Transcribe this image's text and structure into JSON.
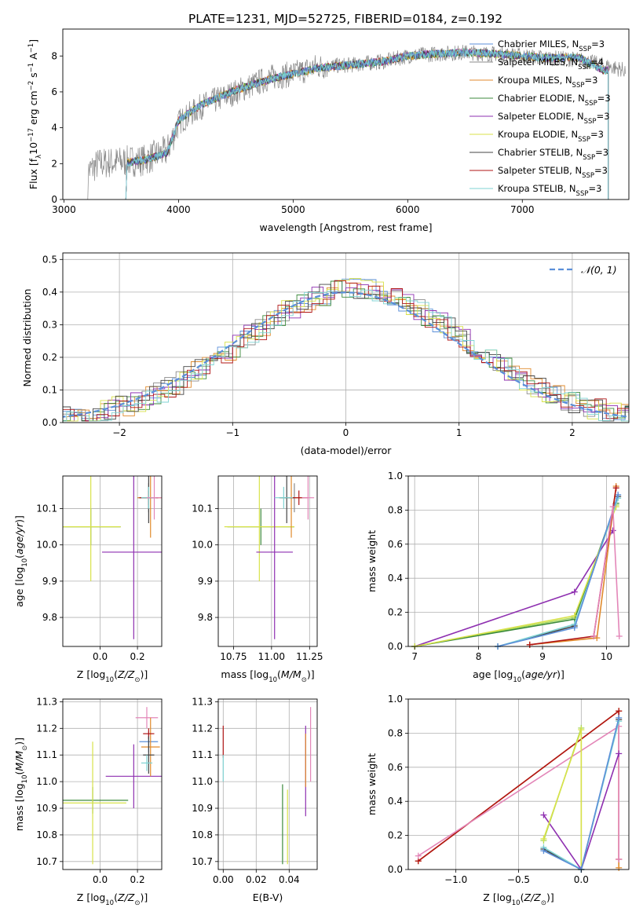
{
  "figure_title": "PLATE=1231, MJD=52725, FIBERID=0184, z=0.192",
  "colors": {
    "chabrier_miles": "#5b8fd9",
    "salpeter_miles": "#8b8b8b",
    "kroupa_miles": "#e08a2c",
    "chabrier_elodie": "#3c8a3c",
    "salpeter_elodie": "#8e2fb0",
    "kroupa_elodie": "#d8e24a",
    "chabrier_stelib": "#444444",
    "salpeter_stelib": "#b01515",
    "kroupa_stelib": "#7fd3d3",
    "gray": "#8a8a8a",
    "pink": "#e386b8",
    "lime": "#a8d85a",
    "normal": "#5b8fd9"
  },
  "chart_data": [
    {
      "id": "spectrum",
      "type": "line",
      "xlabel": "wavelength [Angstrom, rest frame]",
      "ylabel": "Flux [fλ10⁻¹⁷ erg cm⁻² s⁻¹ A⁻¹]",
      "xlim": [
        2990,
        7930
      ],
      "ylim": [
        0,
        9.5
      ],
      "xticks": [
        "3000",
        "4000",
        "5000",
        "6000",
        "7000"
      ],
      "yticks": [
        "0",
        "2",
        "4",
        "6",
        "8"
      ],
      "legend": [
        "Chabrier MILES, N_SSP=3",
        "Salpeter MILES, N_SSP=4",
        "Kroupa MILES, N_SSP=3",
        "Chabrier ELODIE, N_SSP=3",
        "Salpeter ELODIE, N_SSP=3",
        "Kroupa ELODIE, N_SSP=3",
        "Chabrier STELIB, N_SSP=3",
        "Salpeter STELIB, N_SSP=3",
        "Kroupa STELIB, N_SSP=3"
      ],
      "legend_placement": "top-right",
      "data_x": [
        3200,
        3300,
        3500,
        3700,
        3900,
        4000,
        4200,
        4500,
        4800,
        5000,
        5200,
        5500,
        5800,
        6000,
        6200,
        6500,
        6800,
        7000,
        7200,
        7500,
        7700,
        7900
      ],
      "data_y": [
        1.5,
        2.0,
        2.1,
        2.2,
        2.7,
        4.3,
        5.2,
        6.0,
        6.8,
        7.0,
        7.4,
        7.5,
        7.7,
        8.0,
        8.1,
        8.2,
        8.1,
        8.0,
        7.9,
        7.8,
        7.5,
        7.2
      ],
      "model_x": [
        3500,
        3700,
        3900,
        4000,
        4200,
        4500,
        4800,
        5000,
        5200,
        5500,
        5800,
        6000,
        6200,
        6500,
        6800,
        7000,
        7200,
        7500,
        7700
      ],
      "model_y": [
        2.0,
        2.2,
        2.6,
        4.4,
        5.3,
        6.1,
        6.7,
        7.0,
        7.3,
        7.5,
        7.7,
        8.0,
        8.1,
        8.2,
        8.1,
        8.0,
        7.9,
        7.9,
        7.2
      ]
    },
    {
      "id": "residuals",
      "type": "histogram",
      "xlabel": "(data-model)/error",
      "ylabel": "Normed distribution",
      "xlim": [
        -2.5,
        2.5
      ],
      "ylim": [
        0,
        0.52
      ],
      "xticks": [
        "−2",
        "−1",
        "0",
        "1",
        "2"
      ],
      "yticks": [
        "0.0",
        "0.1",
        "0.2",
        "0.3",
        "0.4",
        "0.5"
      ],
      "legend": [
        "𝒩(0, 1)"
      ],
      "legend_placement": "top-right",
      "bin_width": 0.1,
      "bin_start": -2.5
    },
    {
      "id": "age_vs_Z",
      "type": "errorbar",
      "xlabel": "Z [log₁₀(Z/Z⊙)]",
      "ylabel": "age  [log₁₀(age/yr)]",
      "xlim": [
        -0.2,
        0.33
      ],
      "ylim": [
        9.72,
        10.19
      ],
      "xticks": [
        "0.0",
        "0.2"
      ],
      "yticks": [
        "9.8",
        "9.9",
        "10.0",
        "10.1"
      ],
      "points": [
        {
          "c": "chabrier_elodie",
          "x": -0.05,
          "y": 10.05,
          "xe": 0.16,
          "ye": 0.05
        },
        {
          "c": "kroupa_elodie",
          "x": -0.05,
          "y": 10.05,
          "xe": 0.16,
          "ye": 0.15
        },
        {
          "c": "salpeter_elodie",
          "x": 0.18,
          "y": 9.98,
          "xe": 0.17,
          "ye": 0.24
        },
        {
          "c": "salpeter_miles",
          "x": 0.26,
          "y": 10.13,
          "xe": 0.06,
          "ye": 0.04
        },
        {
          "c": "kroupa_miles",
          "x": 0.27,
          "y": 10.13,
          "xe": 0.07,
          "ye": 0.11
        },
        {
          "c": "chabrier_stelib",
          "x": 0.26,
          "y": 10.13,
          "xe": 0.05,
          "ye": 0.07
        },
        {
          "c": "salpeter_stelib",
          "x": 0.26,
          "y": 10.13,
          "xe": 0.05,
          "ye": 0.02
        },
        {
          "c": "kroupa_stelib",
          "x": 0.26,
          "y": 10.13,
          "xe": 0.04,
          "ye": 0.03
        },
        {
          "c": "pink",
          "x": 0.29,
          "y": 10.13,
          "xe": 0.04,
          "ye": 0.06
        }
      ]
    },
    {
      "id": "age_vs_mass",
      "type": "errorbar",
      "xlabel": "mass [log₁₀(M/M⊙)]",
      "xlim": [
        10.65,
        11.3
      ],
      "ylim": [
        9.72,
        10.19
      ],
      "xticks": [
        "10.75",
        "11.00",
        "11.25"
      ],
      "yticks": [
        "9.8",
        "9.9",
        "10.0",
        "10.1"
      ],
      "points": [
        {
          "c": "chabrier_elodie",
          "x": 10.93,
          "y": 10.05,
          "xe": 0.22,
          "ye": 0.05
        },
        {
          "c": "kroupa_elodie",
          "x": 10.92,
          "y": 10.05,
          "xe": 0.23,
          "ye": 0.15
        },
        {
          "c": "salpeter_elodie",
          "x": 11.02,
          "y": 9.98,
          "xe": 0.12,
          "ye": 0.24
        },
        {
          "c": "salpeter_miles",
          "x": 11.15,
          "y": 10.13,
          "xe": 0.06,
          "ye": 0.04
        },
        {
          "c": "kroupa_miles",
          "x": 11.13,
          "y": 10.13,
          "xe": 0.07,
          "ye": 0.11
        },
        {
          "c": "chabrier_stelib",
          "x": 11.1,
          "y": 10.13,
          "xe": 0.05,
          "ye": 0.07
        },
        {
          "c": "salpeter_stelib",
          "x": 11.18,
          "y": 10.13,
          "xe": 0.06,
          "ye": 0.02
        },
        {
          "c": "kroupa_stelib",
          "x": 11.08,
          "y": 10.13,
          "xe": 0.06,
          "ye": 0.03
        },
        {
          "c": "pink",
          "x": 11.24,
          "y": 10.13,
          "xe": 0.04,
          "ye": 0.06
        }
      ]
    },
    {
      "id": "weight_vs_age",
      "type": "line",
      "xlabel": "age  [log₁₀(age/yr)]",
      "ylabel": "mass weight",
      "xlim": [
        6.9,
        10.35
      ],
      "ylim": [
        0,
        1.0
      ],
      "xticks": [
        "7",
        "8",
        "9",
        "10"
      ],
      "yticks": [
        "0.0",
        "0.2",
        "0.4",
        "0.6",
        "0.8",
        "1.0"
      ],
      "series": [
        {
          "c": "salpeter_elodie",
          "x": [
            7.0,
            9.5,
            10.1
          ],
          "y": [
            0.0,
            0.32,
            0.68
          ]
        },
        {
          "c": "lime",
          "x": [
            7.0,
            9.5,
            10.15
          ],
          "y": [
            0.0,
            0.17,
            0.83
          ]
        },
        {
          "c": "chabrier_elodie",
          "x": [
            7.0,
            9.5,
            10.15
          ],
          "y": [
            0.0,
            0.16,
            0.84
          ]
        },
        {
          "c": "kroupa_elodie",
          "x": [
            7.0,
            9.5,
            10.15
          ],
          "y": [
            0.0,
            0.18,
            0.82
          ]
        },
        {
          "c": "chabrier_stelib",
          "x": [
            8.3,
            9.5,
            10.18
          ],
          "y": [
            0.0,
            0.12,
            0.88
          ]
        },
        {
          "c": "kroupa_stelib",
          "x": [
            8.3,
            9.5,
            10.18
          ],
          "y": [
            0.0,
            0.13,
            0.87
          ]
        },
        {
          "c": "chabrier_miles",
          "x": [
            8.3,
            9.5,
            10.18
          ],
          "y": [
            0.0,
            0.11,
            0.89
          ]
        },
        {
          "c": "kroupa_miles",
          "x": [
            8.8,
            9.85,
            10.15
          ],
          "y": [
            0.01,
            0.05,
            0.94
          ]
        },
        {
          "c": "salpeter_stelib",
          "x": [
            8.8,
            9.8,
            10.15
          ],
          "y": [
            0.01,
            0.06,
            0.93
          ]
        },
        {
          "c": "pink",
          "x": [
            9.8,
            10.1,
            10.2
          ],
          "y": [
            0.06,
            0.82,
            0.06
          ]
        }
      ]
    },
    {
      "id": "mass_vs_Z",
      "type": "errorbar",
      "xlabel": "Z [log₁₀(Z/Z⊙)]",
      "ylabel": "mass [log₁₀(M/M⊙)]",
      "xlim": [
        -0.2,
        0.33
      ],
      "ylim": [
        10.67,
        11.31
      ],
      "xticks": [
        "0.0",
        "0.2"
      ],
      "yticks": [
        "10.7",
        "10.8",
        "10.9",
        "11.0",
        "11.1",
        "11.2",
        "11.3"
      ],
      "points": [
        {
          "c": "chabrier_elodie",
          "x": -0.04,
          "y": 10.93,
          "xe": 0.19,
          "ye": 0.05
        },
        {
          "c": "kroupa_elodie",
          "x": -0.04,
          "y": 10.92,
          "xe": 0.18,
          "ye": 0.23
        },
        {
          "c": "salpeter_elodie",
          "x": 0.18,
          "y": 11.02,
          "xe": 0.15,
          "ye": 0.12
        },
        {
          "c": "pink",
          "x": 0.25,
          "y": 11.24,
          "xe": 0.06,
          "ye": 0.04
        },
        {
          "c": "chabrier_miles",
          "x": 0.26,
          "y": 11.15,
          "xe": 0.05,
          "ye": 0.04
        },
        {
          "c": "kroupa_miles",
          "x": 0.27,
          "y": 11.13,
          "xe": 0.05,
          "ye": 0.11
        },
        {
          "c": "salpeter_stelib",
          "x": 0.26,
          "y": 11.18,
          "xe": 0.03,
          "ye": 0.02
        },
        {
          "c": "chabrier_stelib",
          "x": 0.26,
          "y": 11.1,
          "xe": 0.03,
          "ye": 0.07
        },
        {
          "c": "kroupa_stelib",
          "x": 0.25,
          "y": 11.07,
          "xe": 0.03,
          "ye": 0.03
        }
      ]
    },
    {
      "id": "mass_vs_ebv",
      "type": "errorbar",
      "xlabel": "E(B-V)",
      "xlim": [
        -0.003,
        0.057
      ],
      "ylim": [
        10.67,
        11.31
      ],
      "xticks": [
        "0.00",
        "0.02",
        "0.04"
      ],
      "yticks": [
        "10.7",
        "10.8",
        "10.9",
        "11.0",
        "11.1",
        "11.2",
        "11.3"
      ],
      "points": [
        {
          "c": "salpeter_stelib",
          "x": 0.0,
          "y": 11.15,
          "xe": 0.0,
          "ye": 0.06
        },
        {
          "c": "kroupa_stelib",
          "x": 0.0,
          "y": 11.05,
          "xe": 0.0,
          "ye": 0.05
        },
        {
          "c": "chabrier_elodie",
          "x": 0.036,
          "y": 10.84,
          "xe": 0.0,
          "ye": 0.15
        },
        {
          "c": "kroupa_elodie",
          "x": 0.039,
          "y": 10.83,
          "xe": 0.0,
          "ye": 0.14
        },
        {
          "c": "salpeter_elodie",
          "x": 0.05,
          "y": 11.04,
          "xe": 0.0,
          "ye": 0.17
        },
        {
          "c": "kroupa_miles",
          "x": 0.05,
          "y": 11.08,
          "xe": 0.0,
          "ye": 0.1
        },
        {
          "c": "pink",
          "x": 0.053,
          "y": 11.14,
          "xe": 0.0,
          "ye": 0.14
        }
      ]
    },
    {
      "id": "weight_vs_Z",
      "type": "line",
      "xlabel": "Z [log₁₀(Z/Z⊙)]",
      "ylabel": "mass weight",
      "xlim": [
        -1.38,
        0.38
      ],
      "ylim": [
        0,
        1.0
      ],
      "xticks": [
        "−1.0",
        "−0.5",
        "0.0"
      ],
      "yticks": [
        "0.0",
        "0.2",
        "0.4",
        "0.6",
        "0.8",
        "1.0"
      ],
      "series": [
        {
          "c": "kroupa_miles",
          "x": [
            -1.3,
            0.3,
            0.3
          ],
          "y": [
            0.05,
            0.93,
            0.01
          ]
        },
        {
          "c": "salpeter_stelib",
          "x": [
            -1.3,
            0.3,
            0.3
          ],
          "y": [
            0.05,
            0.93,
            0.06
          ]
        },
        {
          "c": "pink",
          "x": [
            -1.3,
            0.3,
            0.3
          ],
          "y": [
            0.08,
            0.84,
            0.06
          ]
        },
        {
          "c": "salpeter_elodie",
          "x": [
            -0.3,
            0.0,
            0.3
          ],
          "y": [
            0.32,
            0.0,
            0.68
          ]
        },
        {
          "c": "lime",
          "x": [
            -0.3,
            0.0,
            0.0
          ],
          "y": [
            0.17,
            0.83,
            0.0
          ]
        },
        {
          "c": "kroupa_elodie",
          "x": [
            -0.3,
            0.0,
            0.0
          ],
          "y": [
            0.18,
            0.82,
            0.0
          ]
        },
        {
          "c": "chabrier_stelib",
          "x": [
            -0.3,
            0.0,
            0.3
          ],
          "y": [
            0.12,
            0.0,
            0.88
          ]
        },
        {
          "c": "kroupa_stelib",
          "x": [
            -0.3,
            0.0,
            0.3
          ],
          "y": [
            0.13,
            0.0,
            0.87
          ]
        },
        {
          "c": "chabrier_miles",
          "x": [
            -0.3,
            0.0,
            0.3
          ],
          "y": [
            0.11,
            0.0,
            0.89
          ]
        }
      ]
    }
  ]
}
